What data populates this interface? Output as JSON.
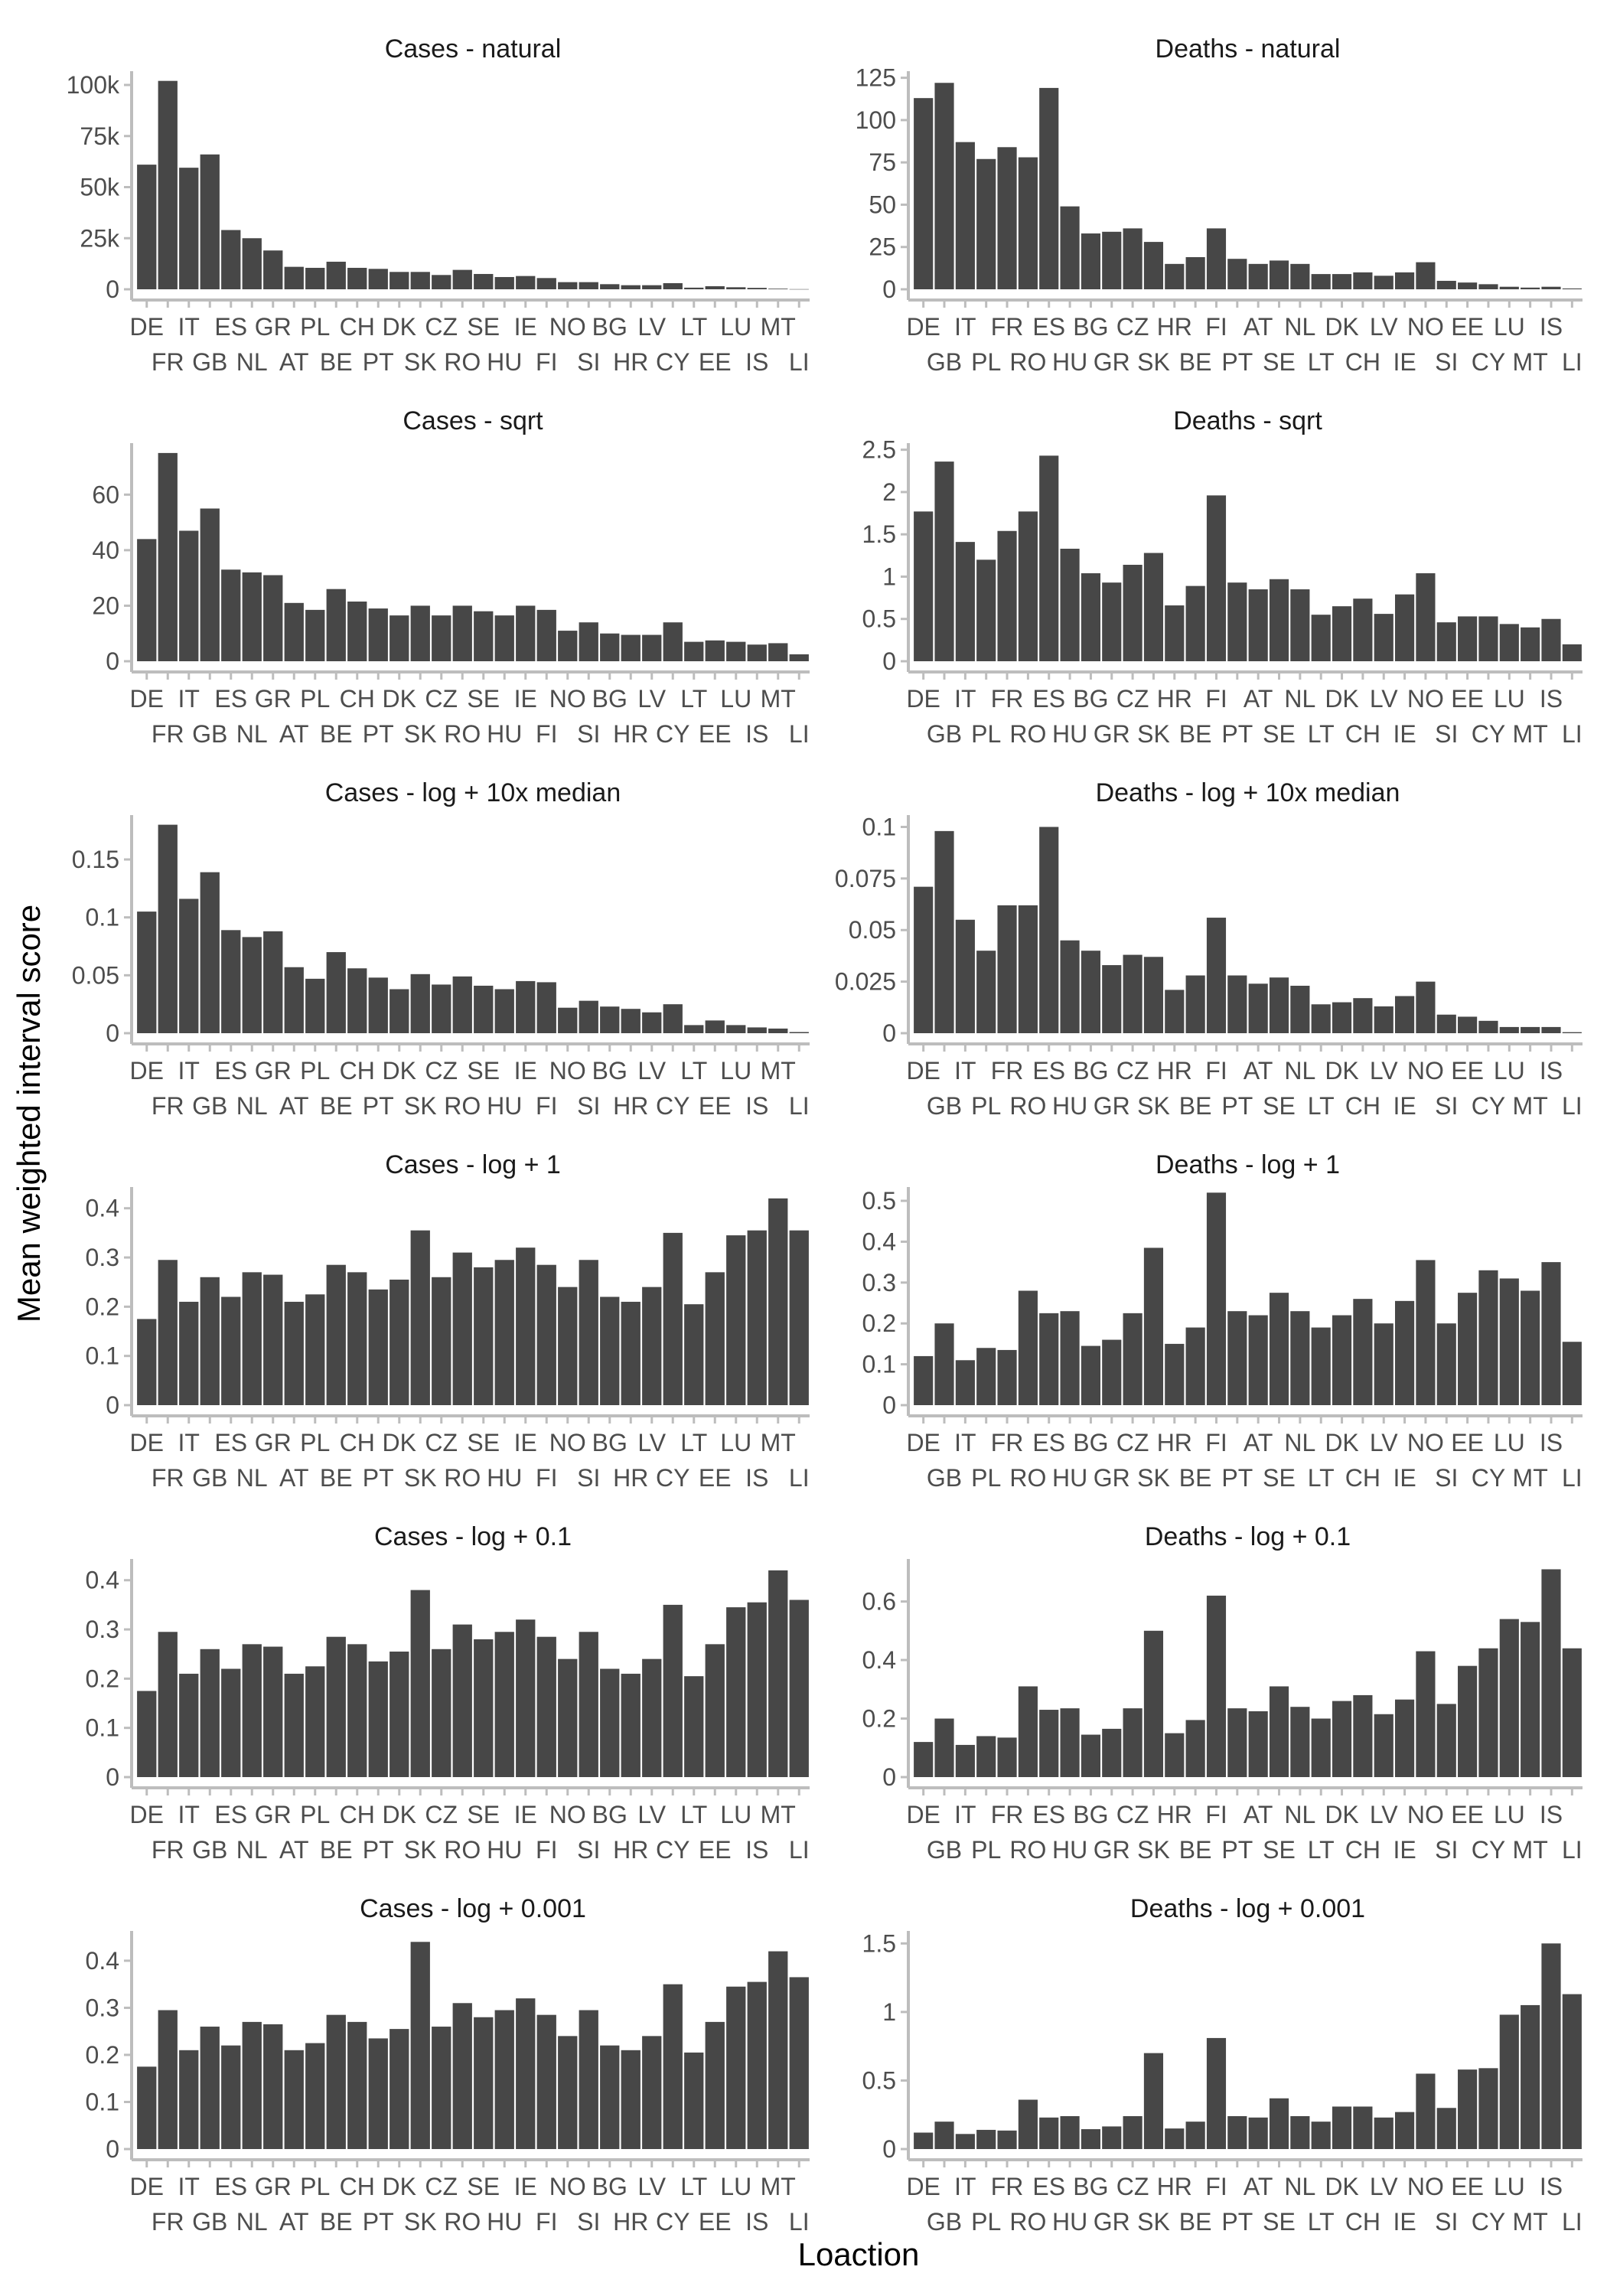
{
  "xlabel": "Loaction",
  "ylabel": "Mean weighted interval score",
  "colors": {
    "bar": "#474747",
    "axis": "#bdbdbd",
    "text": "#4d4d4d"
  },
  "chart_data": [
    {
      "type": "bar",
      "title": "Cases - natural",
      "categories": [
        "DE",
        "FR",
        "IT",
        "GB",
        "ES",
        "NL",
        "GR",
        "AT",
        "PL",
        "BE",
        "CH",
        "PT",
        "DK",
        "SK",
        "CZ",
        "RO",
        "SE",
        "HU",
        "IE",
        "FI",
        "NO",
        "SI",
        "BG",
        "HR",
        "LV",
        "CY",
        "LT",
        "EE",
        "LU",
        "IS",
        "MT",
        "LI"
      ],
      "values": [
        61000,
        102000,
        59500,
        66000,
        29000,
        25000,
        19000,
        11000,
        10500,
        13500,
        10500,
        10000,
        8500,
        8500,
        7000,
        9500,
        7500,
        6000,
        6500,
        5500,
        3500,
        3500,
        2500,
        2000,
        2000,
        3000,
        800,
        1500,
        1000,
        700,
        300,
        80
      ],
      "yticks": [
        0,
        25000,
        50000,
        75000,
        100000
      ],
      "yticklabels": [
        "0",
        "25k",
        "50k",
        "75k",
        "100k"
      ],
      "ylim": [
        0,
        106000
      ]
    },
    {
      "type": "bar",
      "title": "Deaths - natural",
      "categories": [
        "DE",
        "GB",
        "IT",
        "PL",
        "FR",
        "RO",
        "ES",
        "HU",
        "BG",
        "GR",
        "CZ",
        "SK",
        "HR",
        "BE",
        "FI",
        "PT",
        "AT",
        "SE",
        "NL",
        "LT",
        "DK",
        "CH",
        "LV",
        "IE",
        "NO",
        "SI",
        "EE",
        "CY",
        "LU",
        "MT",
        "IS",
        "LI"
      ],
      "values": [
        113,
        122,
        87,
        77,
        84,
        78,
        119,
        49,
        33,
        34,
        36,
        28,
        15,
        19,
        36,
        18,
        15,
        17,
        15,
        9,
        9,
        10,
        8,
        10,
        16,
        5,
        4,
        3,
        1.5,
        1,
        1.5,
        0.5
      ],
      "yticks": [
        0,
        25,
        50,
        75,
        100,
        125
      ],
      "yticklabels": [
        "0",
        "25",
        "50",
        "75",
        "100",
        "125"
      ],
      "ylim": [
        0,
        128
      ]
    },
    {
      "type": "bar",
      "title": "Cases - sqrt",
      "categories": [
        "DE",
        "FR",
        "IT",
        "GB",
        "ES",
        "NL",
        "GR",
        "AT",
        "PL",
        "BE",
        "CH",
        "PT",
        "DK",
        "SK",
        "CZ",
        "RO",
        "SE",
        "HU",
        "IE",
        "FI",
        "NO",
        "SI",
        "BG",
        "HR",
        "LV",
        "CY",
        "LT",
        "EE",
        "LU",
        "IS",
        "MT",
        "LI"
      ],
      "values": [
        44,
        75,
        47,
        55,
        33,
        32,
        31,
        21,
        18.5,
        26,
        21.5,
        19,
        16.5,
        20,
        16.5,
        20,
        18,
        16.5,
        20,
        18.5,
        11,
        14,
        10,
        9.5,
        9.5,
        14,
        7,
        7.5,
        7,
        6,
        6.5,
        2.5
      ],
      "yticks": [
        0,
        20,
        40,
        60
      ],
      "yticklabels": [
        "0",
        "20",
        "40",
        "60"
      ],
      "ylim": [
        0,
        78
      ]
    },
    {
      "type": "bar",
      "title": "Deaths - sqrt",
      "categories": [
        "DE",
        "GB",
        "IT",
        "PL",
        "FR",
        "RO",
        "ES",
        "HU",
        "BG",
        "GR",
        "CZ",
        "SK",
        "HR",
        "BE",
        "FI",
        "PT",
        "AT",
        "SE",
        "NL",
        "LT",
        "DK",
        "CH",
        "LV",
        "IE",
        "NO",
        "SI",
        "EE",
        "CY",
        "LU",
        "MT",
        "IS",
        "LI"
      ],
      "values": [
        1.77,
        2.36,
        1.41,
        1.2,
        1.54,
        1.77,
        2.43,
        1.33,
        1.04,
        0.93,
        1.14,
        1.28,
        0.66,
        0.89,
        1.96,
        0.93,
        0.85,
        0.97,
        0.85,
        0.55,
        0.65,
        0.74,
        0.56,
        0.79,
        1.04,
        0.46,
        0.53,
        0.53,
        0.44,
        0.4,
        0.5,
        0.2
      ],
      "yticks": [
        0,
        0.5,
        1,
        1.5,
        2,
        2.5
      ],
      "yticklabels": [
        "0",
        "0.5",
        "1",
        "1.5",
        "2",
        "2.5"
      ],
      "ylim": [
        0,
        2.56
      ]
    },
    {
      "type": "bar",
      "title": "Cases - log + 10x median",
      "categories": [
        "DE",
        "FR",
        "IT",
        "GB",
        "ES",
        "NL",
        "GR",
        "AT",
        "PL",
        "BE",
        "CH",
        "PT",
        "DK",
        "SK",
        "CZ",
        "RO",
        "SE",
        "HU",
        "IE",
        "FI",
        "NO",
        "SI",
        "BG",
        "HR",
        "LV",
        "CY",
        "LT",
        "EE",
        "LU",
        "IS",
        "MT",
        "LI"
      ],
      "values": [
        0.105,
        0.18,
        0.116,
        0.139,
        0.089,
        0.083,
        0.088,
        0.057,
        0.047,
        0.07,
        0.056,
        0.048,
        0.038,
        0.051,
        0.042,
        0.049,
        0.041,
        0.038,
        0.045,
        0.044,
        0.022,
        0.028,
        0.023,
        0.021,
        0.018,
        0.025,
        0.007,
        0.011,
        0.007,
        0.005,
        0.004,
        0.001
      ],
      "yticks": [
        0,
        0.05,
        0.1,
        0.15
      ],
      "yticklabels": [
        "0",
        "0.05",
        "0.1",
        "0.15"
      ],
      "ylim": [
        0,
        0.187
      ]
    },
    {
      "type": "bar",
      "title": "Deaths - log + 10x median",
      "categories": [
        "DE",
        "GB",
        "IT",
        "PL",
        "FR",
        "RO",
        "ES",
        "HU",
        "BG",
        "GR",
        "CZ",
        "SK",
        "HR",
        "BE",
        "FI",
        "PT",
        "AT",
        "SE",
        "NL",
        "LT",
        "DK",
        "CH",
        "LV",
        "IE",
        "NO",
        "SI",
        "EE",
        "CY",
        "LU",
        "MT",
        "IS",
        "LI"
      ],
      "values": [
        0.071,
        0.098,
        0.055,
        0.04,
        0.062,
        0.062,
        0.1,
        0.045,
        0.04,
        0.033,
        0.038,
        0.037,
        0.021,
        0.028,
        0.056,
        0.028,
        0.024,
        0.027,
        0.023,
        0.014,
        0.015,
        0.017,
        0.013,
        0.018,
        0.025,
        0.009,
        0.008,
        0.006,
        0.003,
        0.003,
        0.003,
        0.0005
      ],
      "yticks": [
        0,
        0.025,
        0.05,
        0.075,
        0.1
      ],
      "yticklabels": [
        "0",
        "0.025",
        "0.05",
        "0.075",
        "0.1"
      ],
      "ylim": [
        0,
        0.105
      ]
    },
    {
      "type": "bar",
      "title": "Cases - log + 1",
      "categories": [
        "DE",
        "FR",
        "IT",
        "GB",
        "ES",
        "NL",
        "GR",
        "AT",
        "PL",
        "BE",
        "CH",
        "PT",
        "DK",
        "SK",
        "CZ",
        "RO",
        "SE",
        "HU",
        "IE",
        "FI",
        "NO",
        "SI",
        "BG",
        "HR",
        "LV",
        "CY",
        "LT",
        "EE",
        "LU",
        "IS",
        "MT",
        "LI"
      ],
      "values": [
        0.175,
        0.295,
        0.21,
        0.26,
        0.22,
        0.27,
        0.265,
        0.21,
        0.225,
        0.285,
        0.27,
        0.235,
        0.255,
        0.355,
        0.26,
        0.31,
        0.28,
        0.295,
        0.32,
        0.285,
        0.24,
        0.295,
        0.22,
        0.21,
        0.24,
        0.35,
        0.205,
        0.27,
        0.345,
        0.355,
        0.42,
        0.355
      ],
      "yticks": [
        0,
        0.1,
        0.2,
        0.3,
        0.4
      ],
      "yticklabels": [
        "0",
        "0.1",
        "0.2",
        "0.3",
        "0.4"
      ],
      "ylim": [
        0,
        0.44
      ]
    },
    {
      "type": "bar",
      "title": "Deaths - log + 1",
      "categories": [
        "DE",
        "GB",
        "IT",
        "PL",
        "FR",
        "RO",
        "ES",
        "HU",
        "BG",
        "GR",
        "CZ",
        "SK",
        "HR",
        "BE",
        "FI",
        "PT",
        "AT",
        "SE",
        "NL",
        "LT",
        "DK",
        "CH",
        "LV",
        "IE",
        "NO",
        "SI",
        "EE",
        "CY",
        "LU",
        "MT",
        "IS",
        "LI"
      ],
      "values": [
        0.12,
        0.2,
        0.11,
        0.14,
        0.135,
        0.28,
        0.225,
        0.23,
        0.145,
        0.16,
        0.225,
        0.385,
        0.15,
        0.19,
        0.52,
        0.23,
        0.22,
        0.275,
        0.23,
        0.19,
        0.22,
        0.26,
        0.2,
        0.255,
        0.355,
        0.2,
        0.275,
        0.33,
        0.31,
        0.28,
        0.35,
        0.155
      ],
      "yticks": [
        0,
        0.1,
        0.2,
        0.3,
        0.4,
        0.5
      ],
      "yticklabels": [
        "0",
        "0.1",
        "0.2",
        "0.3",
        "0.4",
        "0.5"
      ],
      "ylim": [
        0,
        0.53
      ]
    },
    {
      "type": "bar",
      "title": "Cases - log + 0.1",
      "categories": [
        "DE",
        "FR",
        "IT",
        "GB",
        "ES",
        "NL",
        "GR",
        "AT",
        "PL",
        "BE",
        "CH",
        "PT",
        "DK",
        "SK",
        "CZ",
        "RO",
        "SE",
        "HU",
        "IE",
        "FI",
        "NO",
        "SI",
        "BG",
        "HR",
        "LV",
        "CY",
        "LT",
        "EE",
        "LU",
        "IS",
        "MT",
        "LI"
      ],
      "values": [
        0.175,
        0.295,
        0.21,
        0.26,
        0.22,
        0.27,
        0.265,
        0.21,
        0.225,
        0.285,
        0.27,
        0.235,
        0.255,
        0.38,
        0.26,
        0.31,
        0.28,
        0.295,
        0.32,
        0.285,
        0.24,
        0.295,
        0.22,
        0.21,
        0.24,
        0.35,
        0.205,
        0.27,
        0.345,
        0.355,
        0.42,
        0.36
      ],
      "yticks": [
        0,
        0.1,
        0.2,
        0.3,
        0.4
      ],
      "yticklabels": [
        "0",
        "0.1",
        "0.2",
        "0.3",
        "0.4"
      ],
      "ylim": [
        0,
        0.44
      ]
    },
    {
      "type": "bar",
      "title": "Deaths - log + 0.1",
      "categories": [
        "DE",
        "GB",
        "IT",
        "PL",
        "FR",
        "RO",
        "ES",
        "HU",
        "BG",
        "GR",
        "CZ",
        "SK",
        "HR",
        "BE",
        "FI",
        "PT",
        "AT",
        "SE",
        "NL",
        "LT",
        "DK",
        "CH",
        "LV",
        "IE",
        "NO",
        "SI",
        "EE",
        "CY",
        "LU",
        "MT",
        "IS",
        "LI"
      ],
      "values": [
        0.12,
        0.2,
        0.11,
        0.14,
        0.135,
        0.31,
        0.23,
        0.235,
        0.145,
        0.165,
        0.235,
        0.5,
        0.15,
        0.195,
        0.62,
        0.235,
        0.225,
        0.31,
        0.24,
        0.2,
        0.26,
        0.28,
        0.215,
        0.265,
        0.43,
        0.25,
        0.38,
        0.44,
        0.54,
        0.53,
        0.71,
        0.44
      ],
      "yticks": [
        0,
        0.2,
        0.4,
        0.6
      ],
      "yticklabels": [
        "0",
        "0.2",
        "0.4",
        "0.6"
      ],
      "ylim": [
        0,
        0.74
      ]
    },
    {
      "type": "bar",
      "title": "Cases - log + 0.001",
      "categories": [
        "DE",
        "FR",
        "IT",
        "GB",
        "ES",
        "NL",
        "GR",
        "AT",
        "PL",
        "BE",
        "CH",
        "PT",
        "DK",
        "SK",
        "CZ",
        "RO",
        "SE",
        "HU",
        "IE",
        "FI",
        "NO",
        "SI",
        "BG",
        "HR",
        "LV",
        "CY",
        "LT",
        "EE",
        "LU",
        "IS",
        "MT",
        "LI"
      ],
      "values": [
        0.175,
        0.295,
        0.21,
        0.26,
        0.22,
        0.27,
        0.265,
        0.21,
        0.225,
        0.285,
        0.27,
        0.235,
        0.255,
        0.44,
        0.26,
        0.31,
        0.28,
        0.295,
        0.32,
        0.285,
        0.24,
        0.295,
        0.22,
        0.21,
        0.24,
        0.35,
        0.205,
        0.27,
        0.345,
        0.355,
        0.42,
        0.365
      ],
      "yticks": [
        0,
        0.1,
        0.2,
        0.3,
        0.4
      ],
      "yticklabels": [
        "0",
        "0.1",
        "0.2",
        "0.3",
        "0.4"
      ],
      "ylim": [
        0,
        0.46
      ]
    },
    {
      "type": "bar",
      "title": "Deaths - log + 0.001",
      "categories": [
        "DE",
        "GB",
        "IT",
        "PL",
        "FR",
        "RO",
        "ES",
        "HU",
        "BG",
        "GR",
        "CZ",
        "SK",
        "HR",
        "BE",
        "FI",
        "PT",
        "AT",
        "SE",
        "NL",
        "LT",
        "DK",
        "CH",
        "LV",
        "IE",
        "NO",
        "SI",
        "EE",
        "CY",
        "LU",
        "MT",
        "IS",
        "LI"
      ],
      "values": [
        0.12,
        0.2,
        0.11,
        0.14,
        0.135,
        0.36,
        0.23,
        0.24,
        0.145,
        0.165,
        0.24,
        0.7,
        0.15,
        0.2,
        0.81,
        0.24,
        0.23,
        0.37,
        0.24,
        0.2,
        0.31,
        0.31,
        0.23,
        0.27,
        0.55,
        0.3,
        0.58,
        0.59,
        0.98,
        1.05,
        1.5,
        1.13
      ],
      "yticks": [
        0,
        0.5,
        1,
        1.5
      ],
      "yticklabels": [
        "0",
        "0.5",
        "1",
        "1.5"
      ],
      "ylim": [
        0,
        1.58
      ]
    }
  ]
}
